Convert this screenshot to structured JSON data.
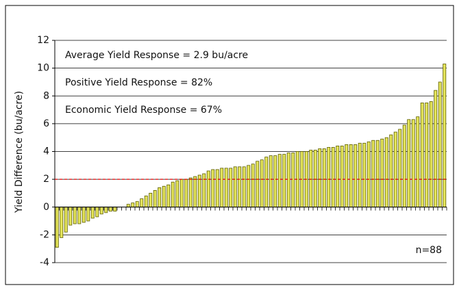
{
  "chart_data": {
    "type": "bar",
    "ylabel": "Yield Difference  (bu/acre)",
    "annotations": [
      "Average Yield Response = 2.9 bu/acre",
      "Positive Yield Response = 82%",
      "Economic Yield Response = 67%",
      "n=88"
    ],
    "categories": [
      null,
      null,
      null,
      null,
      null,
      null,
      null,
      null,
      null,
      null,
      null,
      null,
      null,
      null,
      null,
      null,
      null,
      null,
      null,
      null,
      null,
      null,
      null,
      null,
      null,
      null,
      null,
      null,
      null,
      null,
      null,
      null,
      null,
      null,
      null,
      null,
      null,
      null,
      null,
      null,
      null,
      null,
      null,
      null,
      null,
      null,
      null,
      null,
      null,
      null,
      null,
      null,
      null,
      null,
      null,
      null,
      null,
      null,
      null,
      null,
      null,
      null,
      null,
      null,
      null,
      null,
      null,
      null,
      null,
      null,
      null,
      null,
      null,
      null,
      null,
      null,
      null,
      null,
      null,
      null,
      null,
      null,
      null,
      null,
      null,
      null,
      null,
      null
    ],
    "values": [
      -2.9,
      -2.2,
      -1.8,
      -1.3,
      -1.2,
      -1.2,
      -1.1,
      -1.0,
      -0.8,
      -0.7,
      -0.5,
      -0.4,
      -0.3,
      -0.3,
      0,
      0,
      0.2,
      0.3,
      0.4,
      0.6,
      0.8,
      1.0,
      1.2,
      1.4,
      1.5,
      1.6,
      1.8,
      1.9,
      2.0,
      2.0,
      2.1,
      2.2,
      2.3,
      2.4,
      2.6,
      2.7,
      2.7,
      2.8,
      2.8,
      2.8,
      2.9,
      2.9,
      2.9,
      3.0,
      3.1,
      3.3,
      3.4,
      3.6,
      3.7,
      3.7,
      3.8,
      3.8,
      3.9,
      3.9,
      4.0,
      4.0,
      4.0,
      4.1,
      4.1,
      4.2,
      4.2,
      4.3,
      4.3,
      4.4,
      4.4,
      4.5,
      4.5,
      4.5,
      4.6,
      4.6,
      4.7,
      4.8,
      4.8,
      4.9,
      5.0,
      5.2,
      5.4,
      5.6,
      5.9,
      6.3,
      6.3,
      6.5,
      7.5,
      7.5,
      7.6,
      8.4,
      9.0,
      10.3
    ],
    "color": "#e4e45a",
    "ylim": [
      -4,
      12
    ],
    "yticks": [
      -4,
      -2,
      0,
      2,
      4,
      6,
      8,
      10,
      12
    ],
    "grid": true,
    "reference_line": {
      "value": 2,
      "color": "#e00000"
    }
  }
}
